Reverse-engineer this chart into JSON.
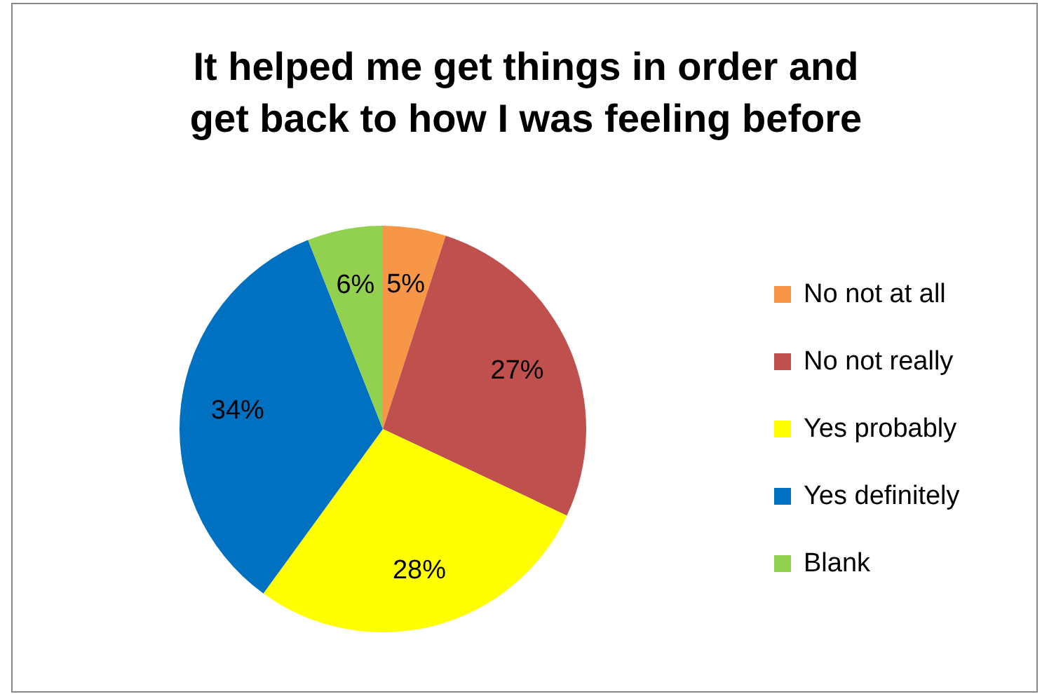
{
  "chart_data": {
    "type": "pie",
    "title": "It helped me get things in order and get back to how I was feeling before",
    "categories": [
      "No not at all",
      "No not really",
      "Yes probably",
      "Yes definitely",
      "Blank"
    ],
    "values": [
      5,
      27,
      28,
      34,
      6
    ],
    "colors": [
      "#f79646",
      "#c0504d",
      "#ffff00",
      "#0070c0",
      "#92d050"
    ],
    "value_labels": [
      "5%",
      "27%",
      "28%",
      "34%",
      "6%"
    ],
    "legend": "right"
  }
}
